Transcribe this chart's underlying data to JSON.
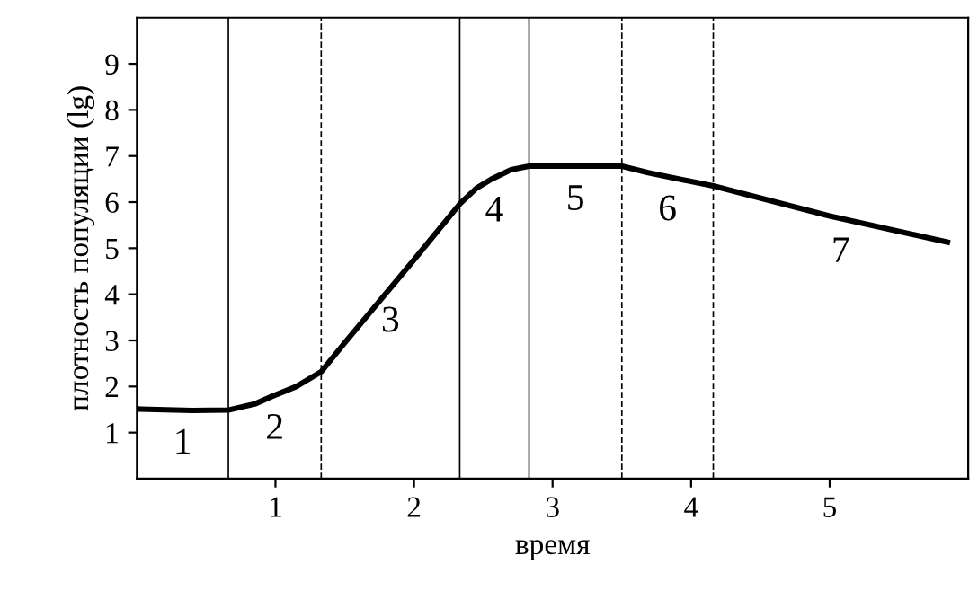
{
  "chart_data": {
    "type": "line",
    "xlabel": "время",
    "ylabel": "плотность популяции (lg)",
    "x": [
      0.03,
      0.4,
      0.66,
      0.85,
      0.97,
      1.15,
      1.33,
      1.5,
      1.7,
      2.0,
      2.33,
      2.45,
      2.56,
      2.7,
      2.83,
      3.5,
      3.69,
      4.16,
      5.0,
      5.85
    ],
    "values": [
      1.51,
      1.48,
      1.49,
      1.62,
      1.78,
      2.0,
      2.32,
      2.95,
      3.67,
      4.75,
      5.96,
      6.3,
      6.5,
      6.7,
      6.78,
      6.78,
      6.64,
      6.35,
      5.7,
      5.13
    ],
    "color": "#000000",
    "xlim": [
      0,
      6
    ],
    "ylim": [
      0,
      10
    ],
    "xticks": [
      1,
      2,
      3,
      4,
      5
    ],
    "yticks": [
      1,
      2,
      3,
      4,
      5,
      6,
      7,
      8,
      9
    ],
    "grid": false,
    "marker": "none",
    "line_style": "solid",
    "ref_lines": [
      {
        "axis": "x",
        "value": 0.66,
        "line_style": "solid"
      },
      {
        "axis": "x",
        "value": 1.33,
        "line_style": "dashed"
      },
      {
        "axis": "x",
        "value": 2.33,
        "line_style": "solid"
      },
      {
        "axis": "x",
        "value": 2.83,
        "line_style": "solid"
      },
      {
        "axis": "x",
        "value": 3.5,
        "line_style": "dashed"
      },
      {
        "axis": "x",
        "value": 4.16,
        "line_style": "dashed"
      }
    ],
    "annotations": [
      "1",
      "2",
      "3",
      "4",
      "5",
      "6",
      "7"
    ]
  }
}
